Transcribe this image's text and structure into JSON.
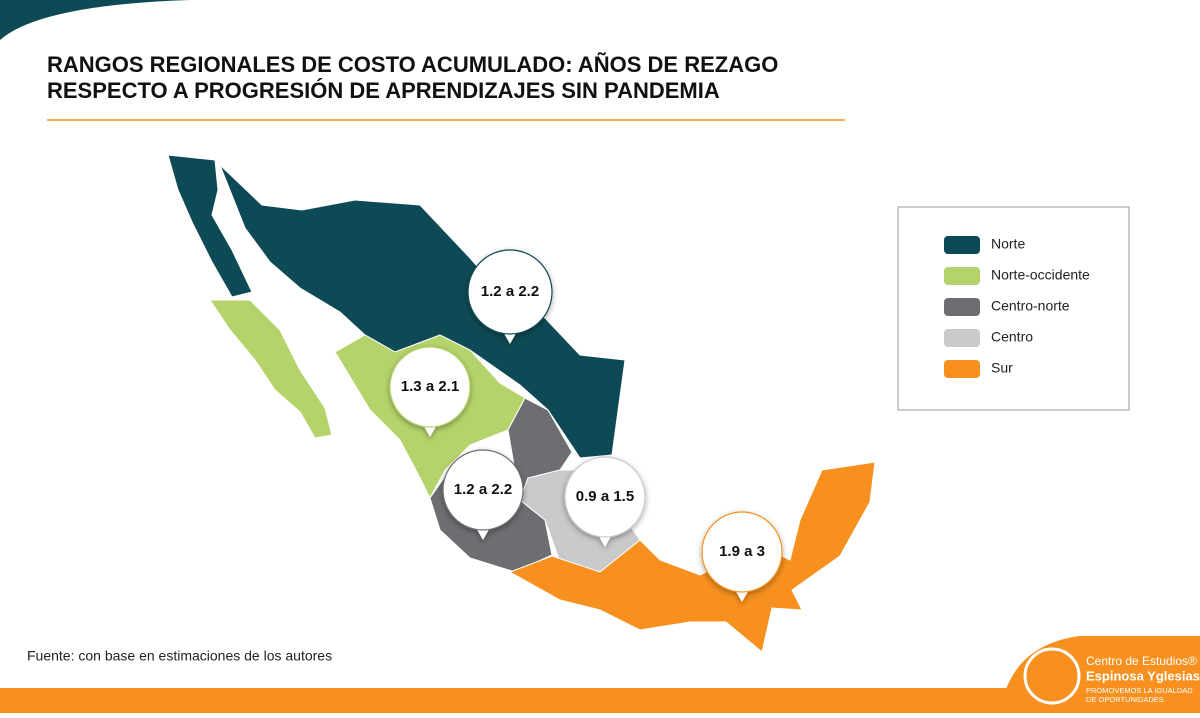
{
  "header": {
    "title_lines": [
      "RANGOS REGIONALES DE COSTO ACUMULADO: AÑOS DE REZAGO",
      "RESPECTO A PROGRESIÓN DE APRENDIZAJES SIN PANDEMIA"
    ]
  },
  "legend": [
    {
      "label": "Norte",
      "color": "#0e4a55"
    },
    {
      "label": "Norte-occidente",
      "color": "#b5d36b"
    },
    {
      "label": "Centro-norte",
      "color": "#6d6e71"
    },
    {
      "label": "Centro",
      "color": "#c9cacc"
    },
    {
      "label": "Sur",
      "color": "#f7901e"
    }
  ],
  "callouts": [
    {
      "label": "1.2 a 2.2",
      "region": "Norte"
    },
    {
      "label": "1.3 a 2.1",
      "region": "Norte-occidente"
    },
    {
      "label": "1.2 a 2.2",
      "region": "Centro-norte"
    },
    {
      "label": "0.9 a 1.5",
      "region": "Centro"
    },
    {
      "label": "1.9 a 3",
      "region": "Sur"
    }
  ],
  "source": "Fuente: con base en estimaciones de los autores",
  "logo": {
    "line1": "Centro de Estudios®",
    "line2": "Espinosa Yglesias",
    "line3": "PROMOVEMOS LA IGUALDAD",
    "line4": "DE OPORTUNIDADES"
  }
}
